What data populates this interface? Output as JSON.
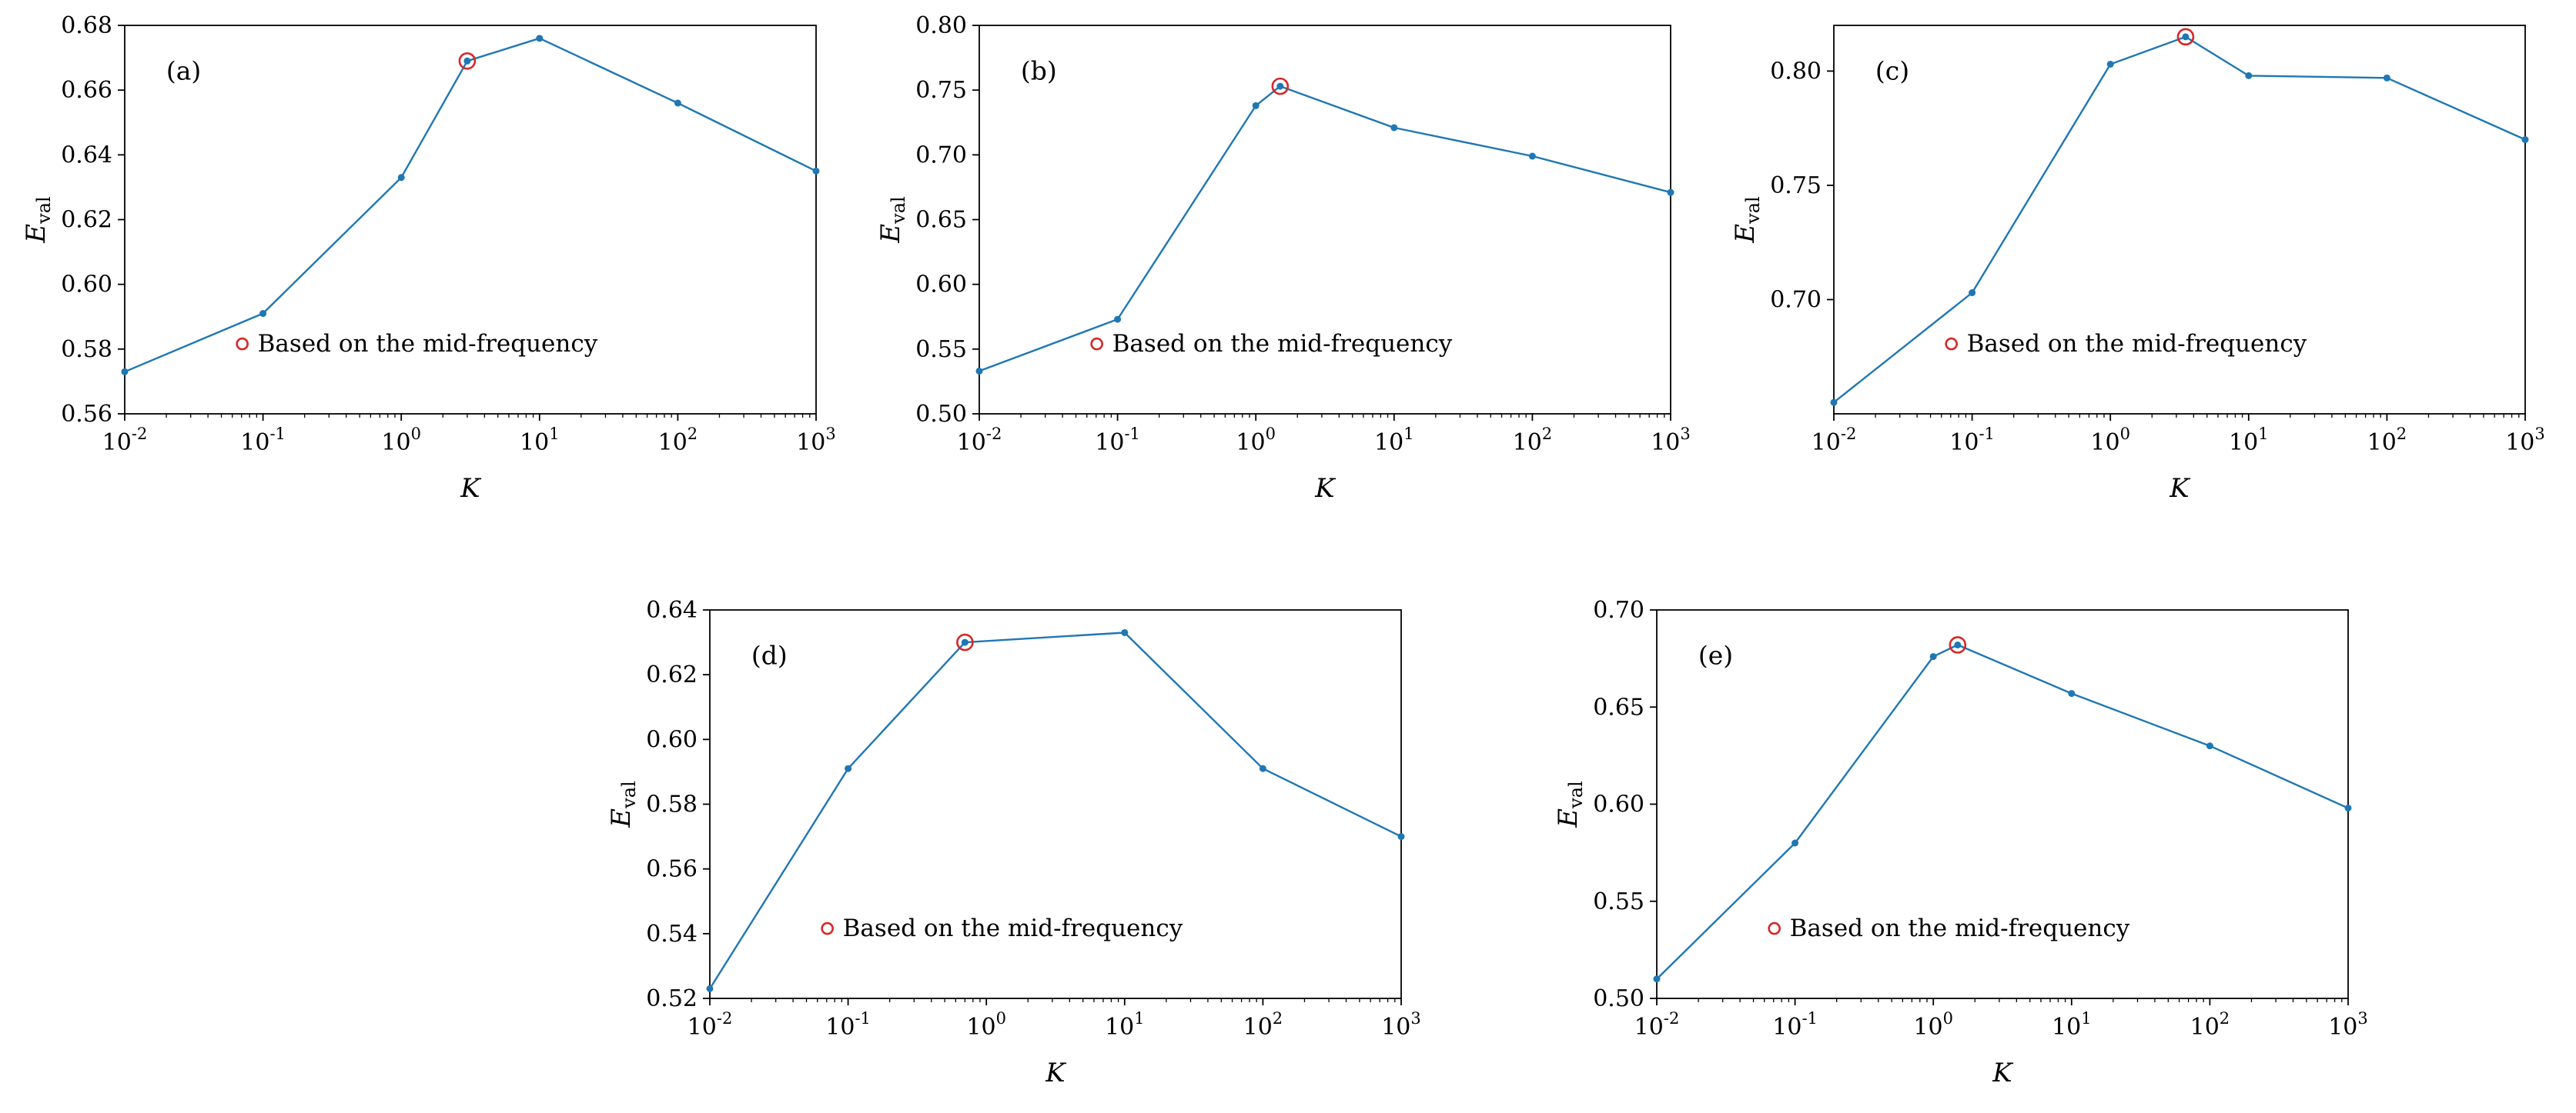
{
  "figure": {
    "background": "#ffffff"
  },
  "shared": {
    "type": "line",
    "xlabel": "K",
    "ylabel": {
      "base": "E",
      "sub": "val"
    },
    "legend_label": "Based on the mid-frequency",
    "xscale": "log",
    "xlim_exponents": [
      -2,
      3
    ],
    "xtick_exponents": [
      -2,
      -1,
      0,
      1,
      2,
      3
    ],
    "xtick_base": "10",
    "grid": false,
    "colors": {
      "line": "#1f77b4",
      "highlight": "#d62728",
      "text": "#000000",
      "spine": "#000000"
    }
  },
  "chart_data": [
    {
      "type": "line",
      "panel": "(a)",
      "x": [
        0.01,
        0.1,
        1,
        3,
        10,
        100,
        1000
      ],
      "y": [
        0.573,
        0.591,
        0.633,
        0.669,
        0.676,
        0.656,
        0.635
      ],
      "highlight": {
        "x": 3,
        "y": 0.669,
        "label": "Based on the mid-frequency"
      },
      "ylim": [
        0.56,
        0.68
      ],
      "yticks": [
        0.56,
        0.58,
        0.6,
        0.62,
        0.64,
        0.66,
        0.68
      ],
      "xlabel": "K",
      "ylabel": "E_val"
    },
    {
      "type": "line",
      "panel": "(b)",
      "x": [
        0.01,
        0.1,
        1,
        1.5,
        10,
        100,
        1000
      ],
      "y": [
        0.533,
        0.573,
        0.738,
        0.753,
        0.721,
        0.699,
        0.671
      ],
      "highlight": {
        "x": 1.5,
        "y": 0.753,
        "label": "Based on the mid-frequency"
      },
      "ylim": [
        0.5,
        0.8
      ],
      "yticks": [
        0.5,
        0.55,
        0.6,
        0.65,
        0.7,
        0.75,
        0.8
      ],
      "xlabel": "K",
      "ylabel": "E_val"
    },
    {
      "type": "line",
      "panel": "(c)",
      "x": [
        0.01,
        0.1,
        1,
        3.5,
        10,
        100,
        1000
      ],
      "y": [
        0.655,
        0.703,
        0.803,
        0.815,
        0.798,
        0.797,
        0.77
      ],
      "highlight": {
        "x": 3.5,
        "y": 0.815,
        "label": "Based on the mid-frequency"
      },
      "ylim": [
        0.65,
        0.82
      ],
      "yticks": [
        0.7,
        0.75,
        0.8
      ],
      "xlabel": "K",
      "ylabel": "E_val"
    },
    {
      "type": "line",
      "panel": "(d)",
      "x": [
        0.01,
        0.1,
        0.7,
        10,
        100,
        1000
      ],
      "y": [
        0.523,
        0.591,
        0.63,
        0.633,
        0.591,
        0.57
      ],
      "highlight": {
        "x": 0.7,
        "y": 0.63,
        "label": "Based on the mid-frequency"
      },
      "ylim": [
        0.52,
        0.64
      ],
      "yticks": [
        0.52,
        0.54,
        0.56,
        0.58,
        0.6,
        0.62,
        0.64
      ],
      "xlabel": "K",
      "ylabel": "E_val"
    },
    {
      "type": "line",
      "panel": "(e)",
      "x": [
        0.01,
        0.1,
        1,
        1.5,
        10,
        100,
        1000
      ],
      "y": [
        0.51,
        0.58,
        0.676,
        0.682,
        0.657,
        0.63,
        0.598
      ],
      "highlight": {
        "x": 1.5,
        "y": 0.682,
        "label": "Based on the mid-frequency"
      },
      "ylim": [
        0.5,
        0.7
      ],
      "yticks": [
        0.5,
        0.55,
        0.6,
        0.65,
        0.7
      ],
      "xlabel": "K",
      "ylabel": "E_val"
    }
  ]
}
